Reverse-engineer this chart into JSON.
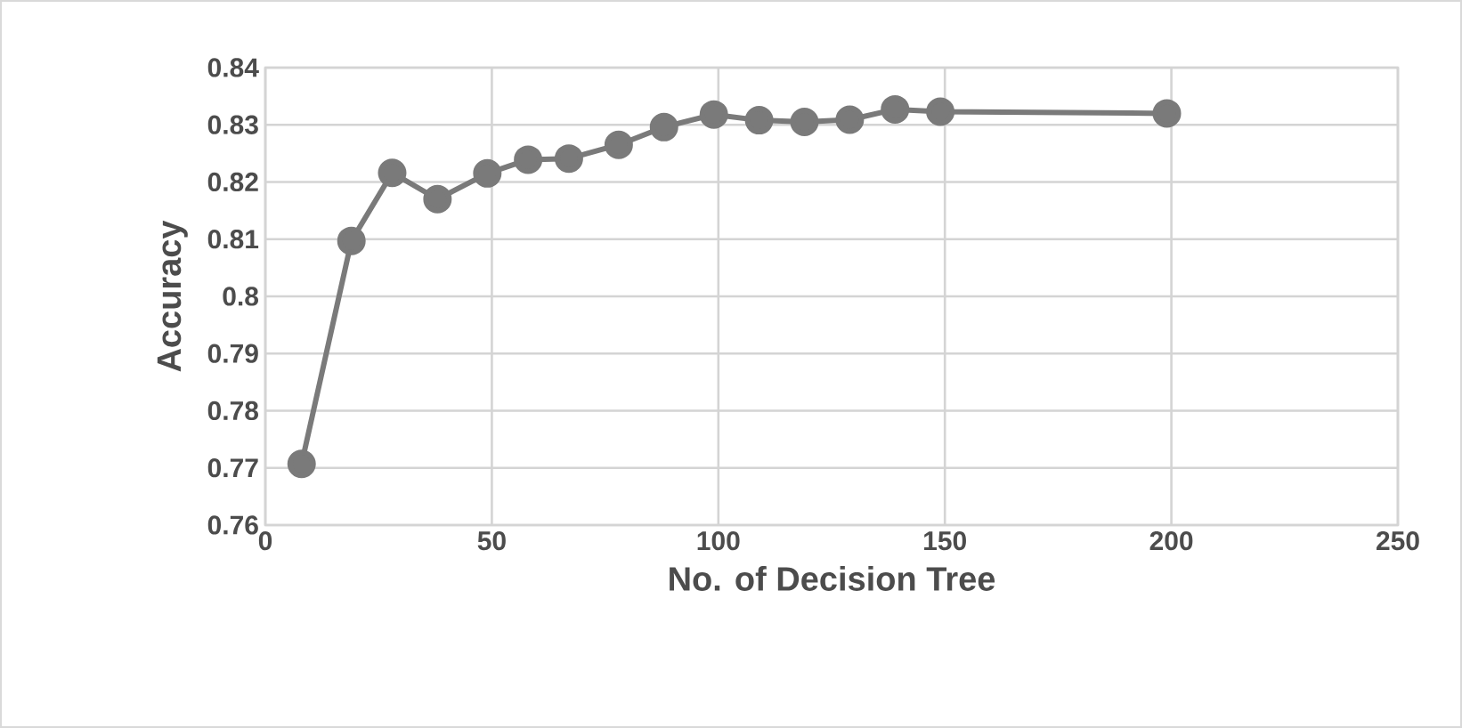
{
  "chart_data": {
    "type": "line",
    "xlabel": "No. of Decision Tree",
    "ylabel": "Accuracy",
    "x": [
      8,
      19,
      28,
      38,
      49,
      58,
      67,
      78,
      88,
      99,
      109,
      119,
      129,
      139,
      149,
      199
    ],
    "series": [
      {
        "color": "#7a7a7a",
        "values": [
          0.7707,
          0.8097,
          0.8216,
          0.817,
          0.8215,
          0.8239,
          0.8241,
          0.8265,
          0.8296,
          0.8318,
          0.8308,
          0.8305,
          0.8309,
          0.8327,
          0.8323,
          0.832
        ]
      }
    ],
    "xlim": [
      0,
      250
    ],
    "xticks": [
      0,
      50,
      100,
      150,
      200,
      250
    ],
    "ylim": [
      0.76,
      0.84
    ],
    "yticks": [
      0.76,
      0.77,
      0.78,
      0.79,
      0.8,
      0.81,
      0.82,
      0.83,
      0.84
    ],
    "grid": true,
    "marker": "circle",
    "line_style": "solid"
  }
}
